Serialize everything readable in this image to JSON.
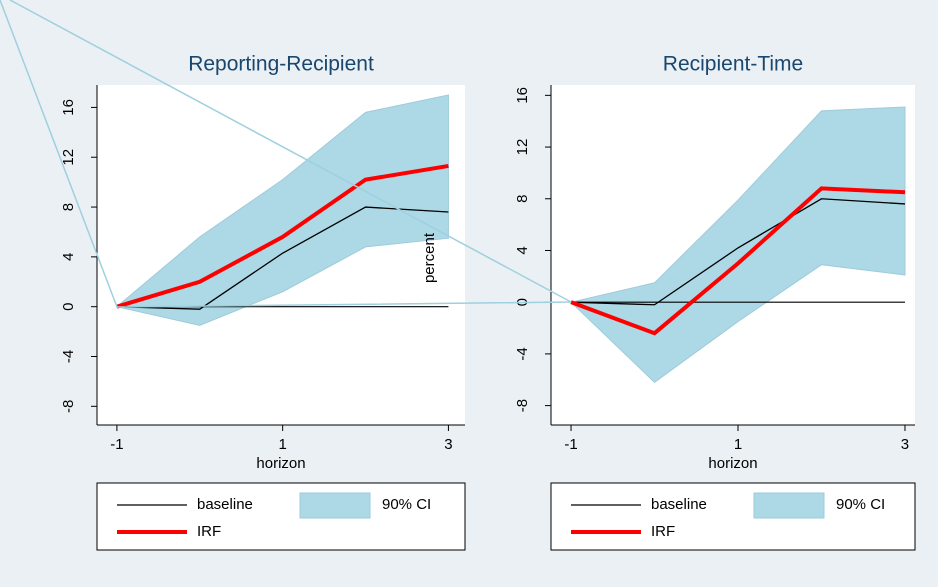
{
  "chart_data": [
    {
      "type": "line",
      "title": "Reporting-Recipient",
      "xlabel": "horizon",
      "ylabel": "percent",
      "x": [
        -1,
        0,
        1,
        2,
        3
      ],
      "series": [
        {
          "name": "baseline",
          "color": "#000000",
          "values": [
            0,
            -0.2,
            4.3,
            8.0,
            7.6
          ]
        },
        {
          "name": "IRF",
          "color": "#ff0000",
          "values": [
            0,
            2.0,
            5.6,
            10.2,
            11.3
          ]
        }
      ],
      "band": {
        "name": "90% CI",
        "color": "#add8e6",
        "lower": [
          0,
          -1.5,
          1.2,
          4.8,
          5.5
        ],
        "upper": [
          0,
          5.6,
          10.2,
          15.6,
          17.0
        ]
      },
      "yline": 0,
      "xlim": [
        -1.24,
        3.2
      ],
      "xticks": [
        -1,
        1,
        3
      ],
      "ylim": [
        -9.5,
        17.8
      ],
      "yticks": [
        -8,
        -4,
        0,
        4,
        8,
        12,
        16
      ]
    },
    {
      "type": "line",
      "title": "Recipient-Time",
      "xlabel": "horizon",
      "x": [
        -1,
        0,
        1,
        2,
        3
      ],
      "series": [
        {
          "name": "baseline",
          "color": "#000000",
          "values": [
            0,
            -0.2,
            4.2,
            8.0,
            7.6
          ]
        },
        {
          "name": "IRF",
          "color": "#ff0000",
          "values": [
            0,
            -2.4,
            3.0,
            8.8,
            8.5
          ]
        }
      ],
      "band": {
        "name": "90% CI",
        "color": "#add8e6",
        "lower": [
          0,
          -6.2,
          -1.5,
          2.9,
          2.1
        ],
        "upper": [
          0,
          1.5,
          7.9,
          14.8,
          15.1
        ]
      },
      "yline": 0,
      "xlim": [
        -1.24,
        3.12
      ],
      "xticks": [
        -1,
        1,
        3
      ],
      "ylim": [
        -9.5,
        16.8
      ],
      "yticks": [
        -8,
        -4,
        0,
        4,
        8,
        12,
        16
      ]
    }
  ]
}
